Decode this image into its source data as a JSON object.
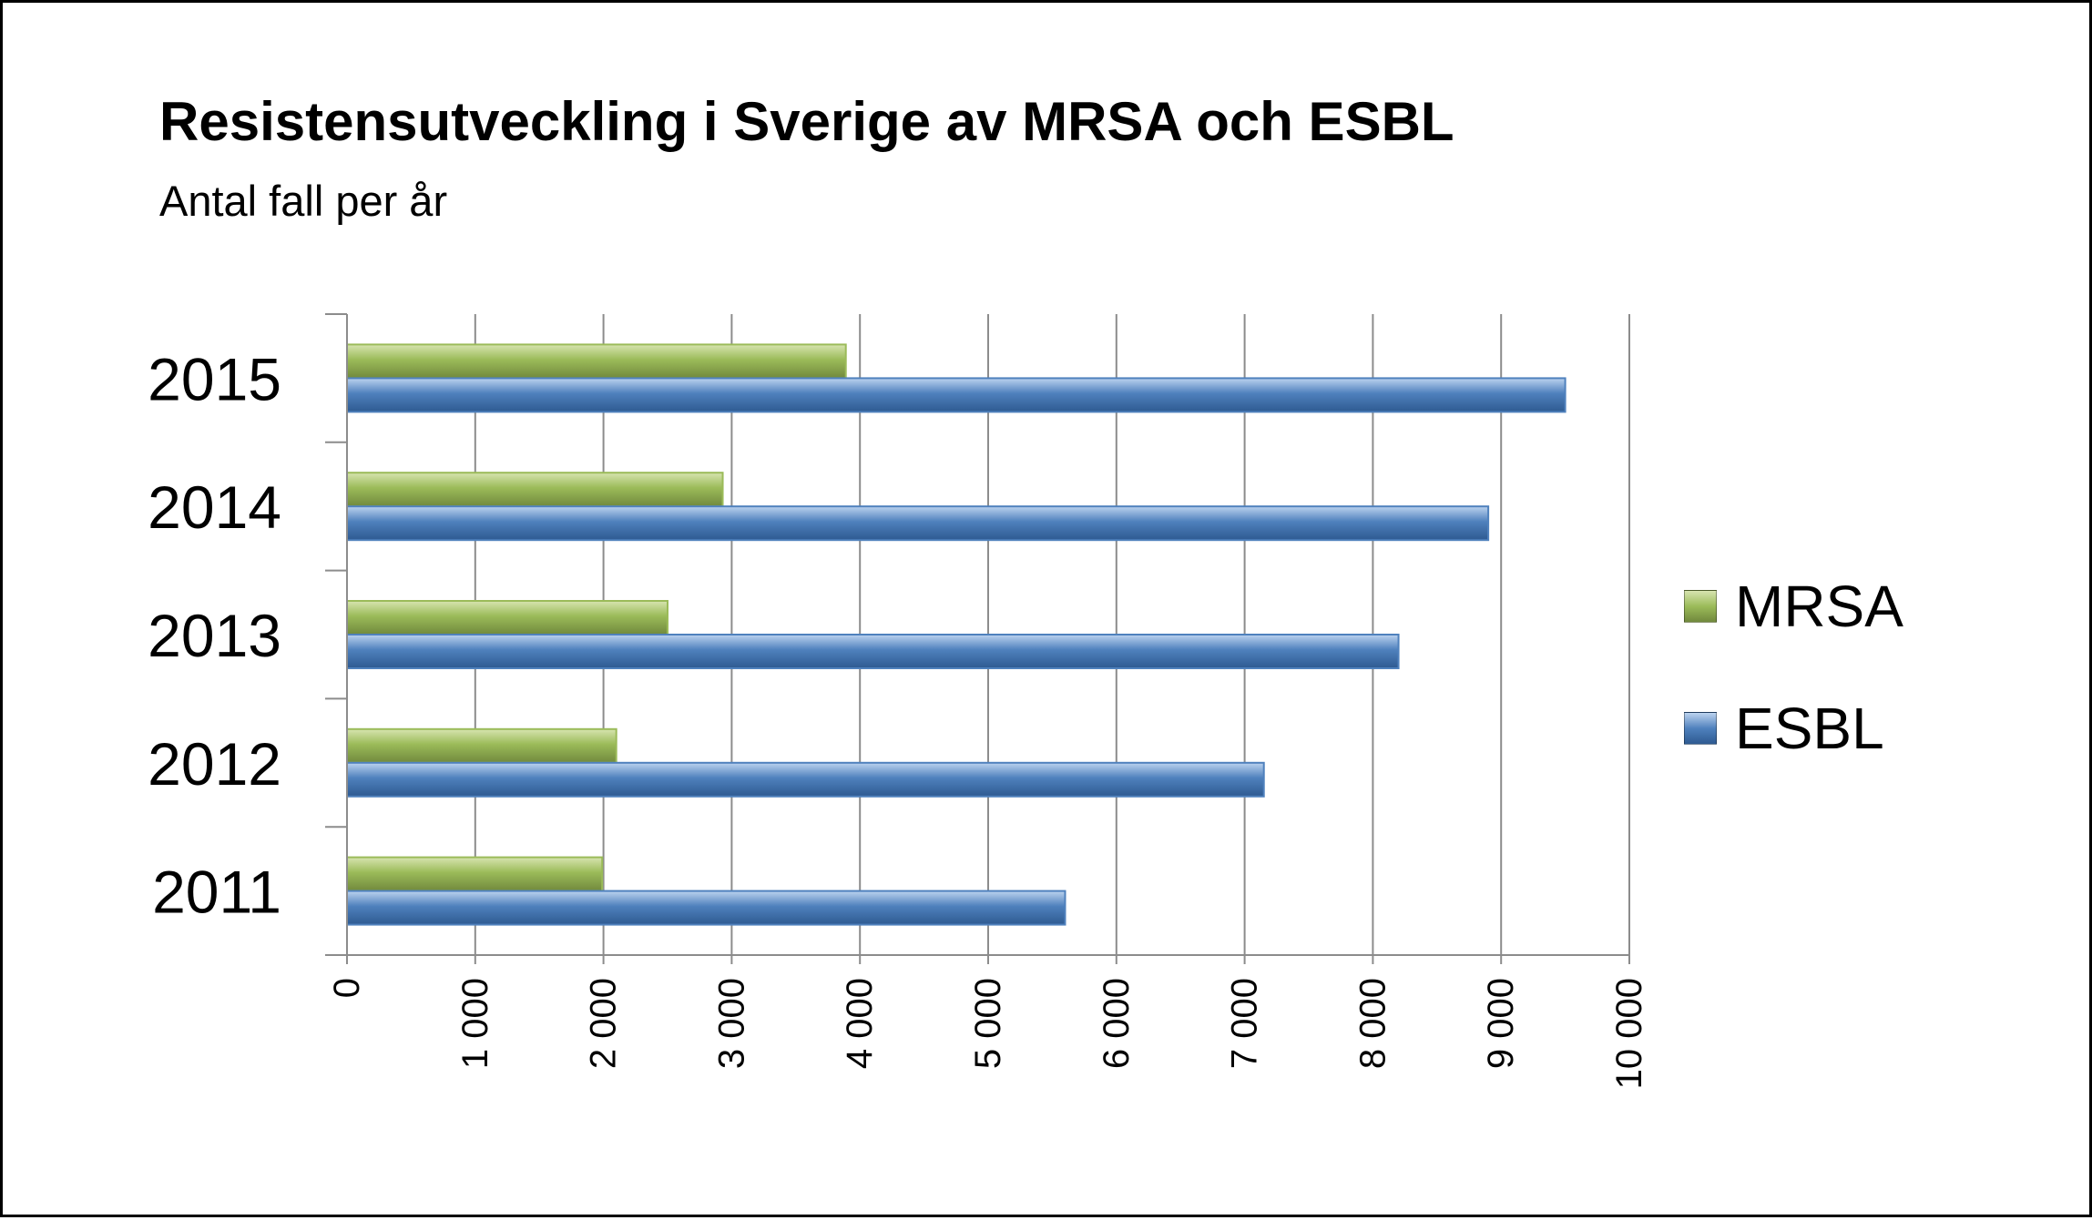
{
  "chart_data": {
    "type": "bar",
    "orientation": "horizontal",
    "title": "Resistensutveckling i Sverige av MRSA och ESBL",
    "subtitle": "Antal fall per år",
    "categories": [
      "2011",
      "2012",
      "2013",
      "2014",
      "2015"
    ],
    "series": [
      {
        "name": "MRSA",
        "color": "#9bbb59",
        "values": [
          1990,
          2100,
          2500,
          2930,
          3890
        ]
      },
      {
        "name": "ESBL",
        "color": "#4f81bd",
        "values": [
          5600,
          7150,
          8200,
          8900,
          9500
        ]
      }
    ],
    "xlim": [
      0,
      10000
    ],
    "x_ticks": [
      "0",
      "1 000",
      "2 000",
      "3 000",
      "4 000",
      "5 000",
      "6 000",
      "7 000",
      "8 000",
      "9 000",
      "10 000"
    ],
    "grid": "vertical",
    "legend_position": "right"
  }
}
